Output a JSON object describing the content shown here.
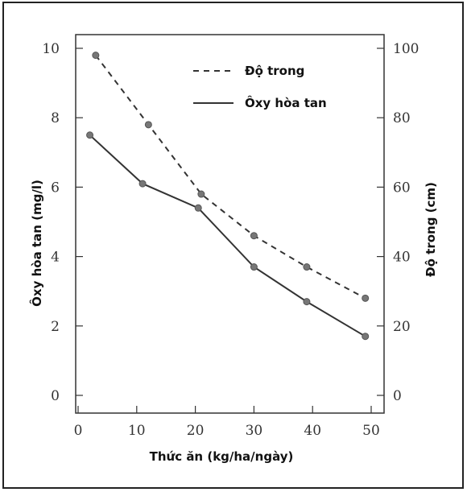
{
  "chart_data": {
    "type": "line",
    "xlabel": "Thức ăn (kg/ha/ngày)",
    "ylabel_left": "Ôxy hòa tan (mg/l)",
    "ylabel_right": "Độ trong (cm)",
    "xlim": [
      0,
      50
    ],
    "ylim_left": [
      0,
      10
    ],
    "ylim_right": [
      0,
      100
    ],
    "x_ticks": [
      "0",
      "10",
      "20",
      "30",
      "40",
      "50"
    ],
    "y_left_ticks": [
      "0",
      "2",
      "4",
      "6",
      "8",
      "10"
    ],
    "y_right_ticks": [
      "0",
      "20",
      "40",
      "60",
      "80",
      "100"
    ],
    "grid": false,
    "legend_position": "top-right",
    "series": [
      {
        "name": "Độ trong",
        "axis": "right",
        "style": "dashed",
        "x": [
          3,
          12,
          21,
          30,
          39,
          49
        ],
        "y": [
          98,
          78,
          58,
          46,
          37,
          28
        ]
      },
      {
        "name": "Ôxy hòa tan",
        "axis": "left",
        "style": "solid",
        "x": [
          2,
          11,
          20.5,
          30,
          39,
          49
        ],
        "y": [
          7.5,
          6.1,
          5.4,
          3.7,
          2.7,
          1.7
        ]
      }
    ]
  },
  "colors": {
    "line": "#333333",
    "marker": "#777777",
    "axis": "#333333"
  }
}
